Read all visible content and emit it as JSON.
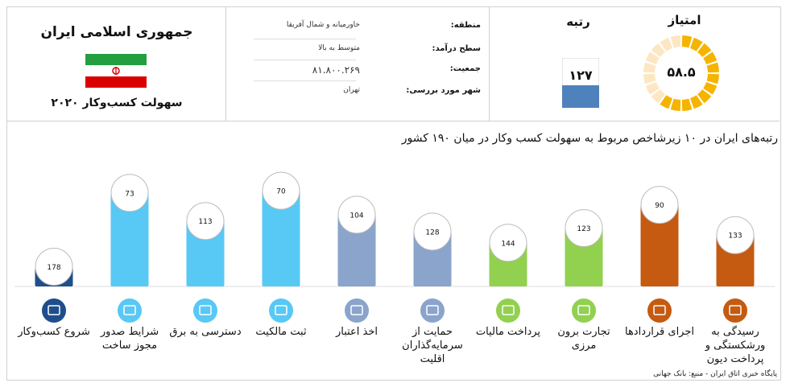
{
  "country": {
    "title": "جمهوری اسلامی ایران",
    "subtitle": "سهولت کسب‌وکار ۲۰۲۰"
  },
  "info": [
    {
      "label": "منطقه:",
      "value": "خاورمیانه و شمال آفریقا"
    },
    {
      "label": "سطح درآمد:",
      "value": "متوسط به بالا"
    },
    {
      "label": "جمعیت:",
      "value": "۸۱.۸۰۰.۲۶۹"
    },
    {
      "label": "شهر مورد بررسی:",
      "value": "تهران"
    }
  ],
  "score": {
    "label": "امتیاز",
    "value": "۵۸.۵",
    "fraction": 0.585
  },
  "rank": {
    "label": "رتبه",
    "value": "۱۲۷"
  },
  "colors": {
    "accent_orange": "#f5b400",
    "donut_track": "#fde7c2",
    "rank_blue": "#4f81bd"
  },
  "chart_data": {
    "type": "bar",
    "title": "رتبه‌های ایران در ۱۰ زیرشاخص مربوط به سهولت کسب وکار در میان ۱۹۰ کشور",
    "ylim": [
      0,
      190
    ],
    "inverted": true,
    "categories": [
      "شروع کسب‌وکار",
      "شرایط صدور مجوز ساخت",
      "دسترسی به برق",
      "ثبت مالکیت",
      "اخذ اعتبار",
      "حمایت از سرمایه‌گذاران اقلیت",
      "پرداخت مالیات",
      "تجارت برون مرزی",
      "اجرای قراردادها",
      "رسیدگی به ورشکستگی و پرداخت دیون"
    ],
    "values": [
      178,
      73,
      113,
      70,
      104,
      128,
      144,
      123,
      90,
      133
    ],
    "value_labels": [
      "178",
      "73",
      "113",
      "70",
      "104",
      "128",
      "144",
      "123",
      "90",
      "133"
    ],
    "bar_colors": [
      "#1f4e8c",
      "#58c8f5",
      "#58c8f5",
      "#58c8f5",
      "#8aa4cc",
      "#8aa4cc",
      "#92d050",
      "#92d050",
      "#c55a11",
      "#c55a11"
    ],
    "icons": [
      "building-icon",
      "tools-icon",
      "lightning-icon",
      "buildings-icon",
      "credit-card-icon",
      "trend-icon",
      "money-icon",
      "truck-icon",
      "court-icon",
      "gavel-icon"
    ]
  },
  "source": "پایگاه خبری اتاق ایران - منبع: بانک جهانی"
}
